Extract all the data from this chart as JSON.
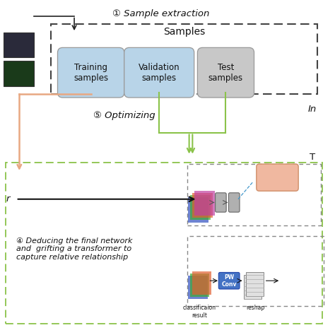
{
  "bg_color": "#ffffff",
  "step1_label": "① Sample extraction",
  "step3_label": "④ Deducing the final network\nand  grifting a transformer to\ncapture relative relationship",
  "step4_label": "⑤ Optimizing",
  "samples_label": "Samples",
  "training_label": "Training\nsamples",
  "validation_label": "Validation\nsamples",
  "test_label": "Test\nsamples",
  "classif_label": "classificaion\nresult",
  "reshape_label": "reshap",
  "pwconv_label": "PW\nConv",
  "training_color": "#b8d4e8",
  "validation_color": "#b8d4e8",
  "test_color": "#c8c8c8",
  "pwconv_color": "#4472c4",
  "orange_arrow": "#e8a882",
  "green_arrow": "#8bc34a",
  "bottom_dashed_color": "#8bc34a"
}
